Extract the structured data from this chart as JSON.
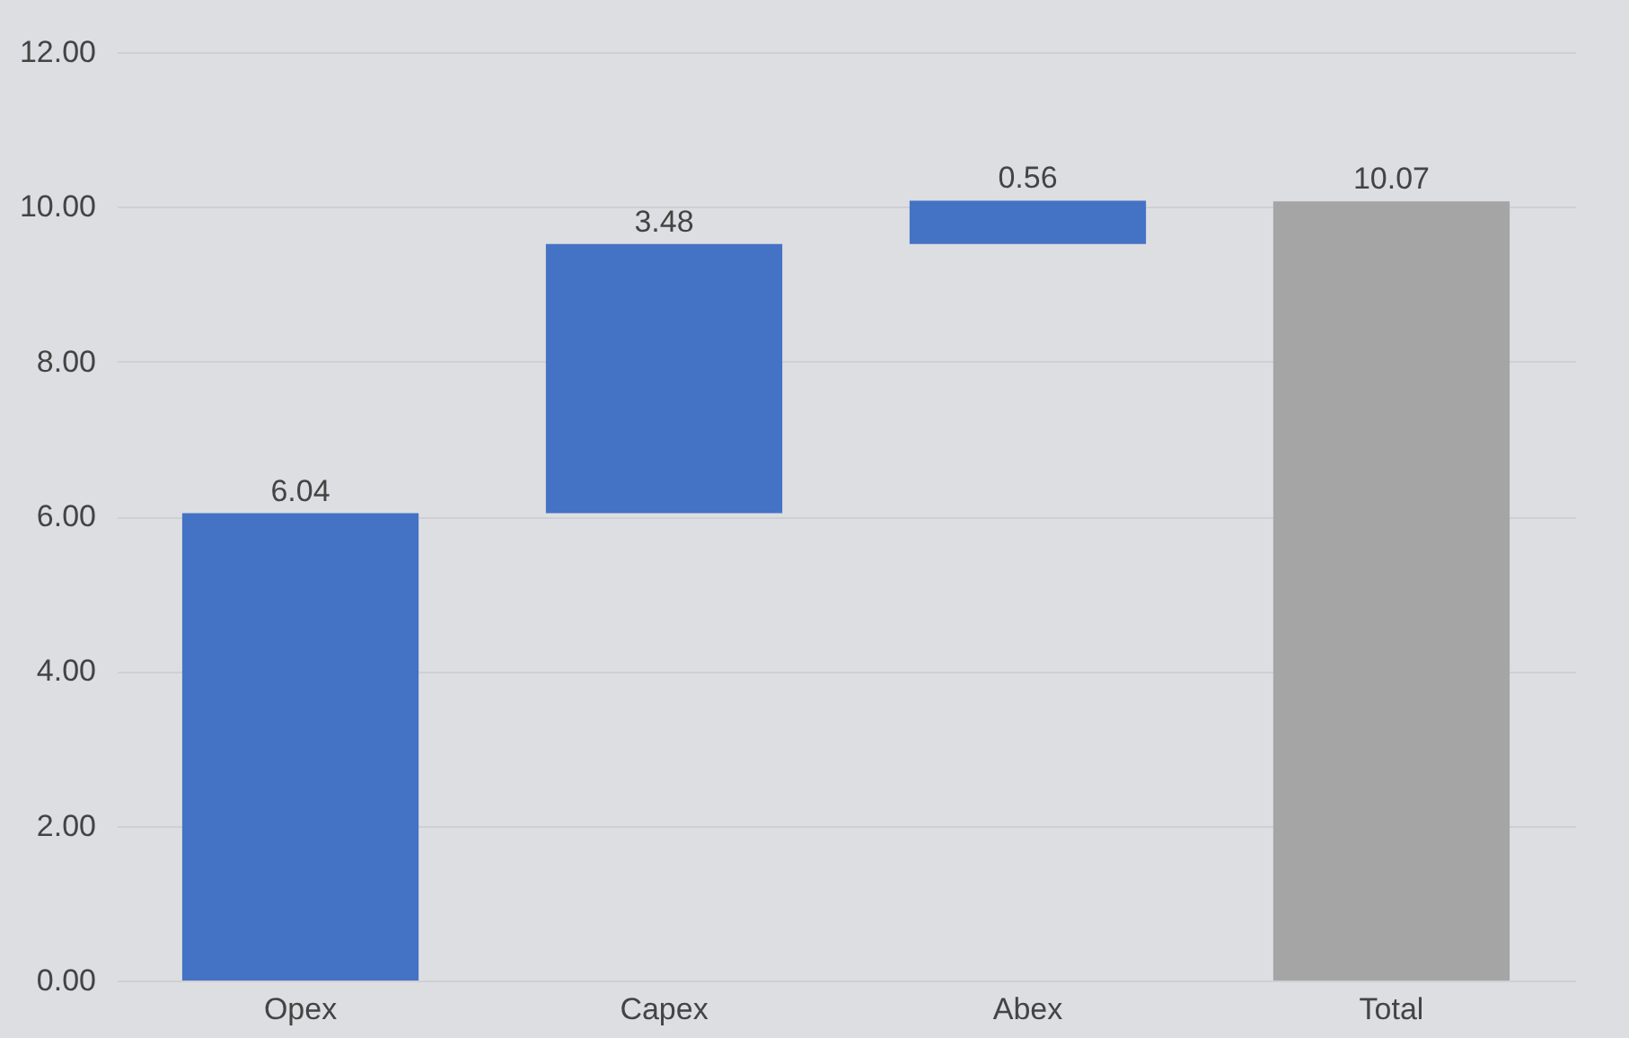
{
  "chart_data": {
    "type": "bar",
    "categories": [
      "Opex",
      "Capex",
      "Abex",
      "Total"
    ],
    "values": [
      6.04,
      3.48,
      0.56,
      10.07
    ],
    "base": [
      0,
      6.04,
      9.52,
      0
    ],
    "colors": [
      "#4472c4",
      "#4472c4",
      "#4472c4",
      "#a5a5a5"
    ],
    "ylim": [
      0,
      12
    ],
    "yticks": [
      {
        "value": 0,
        "label": "0.00"
      },
      {
        "value": 2,
        "label": "2.00"
      },
      {
        "value": 4,
        "label": "4.00"
      },
      {
        "value": 6,
        "label": "6.00"
      },
      {
        "value": 8,
        "label": "8.00"
      },
      {
        "value": 10,
        "label": "10.00"
      },
      {
        "value": 12,
        "label": "12.00"
      }
    ],
    "grid": "y",
    "data_labels": true
  }
}
